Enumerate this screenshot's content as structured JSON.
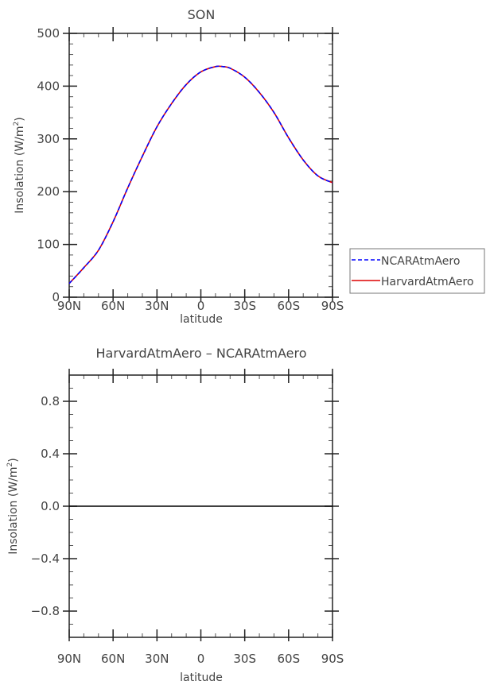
{
  "chart_data": [
    {
      "type": "line",
      "title": "SON",
      "xlabel": "latitude",
      "ylabel": "Insolation (W/m²)",
      "ylabel_main": "Insolation  (W/m",
      "ylabel_sup": "2",
      "ylabel_end": ")",
      "xlim": [
        90,
        -90
      ],
      "ylim": [
        0,
        500
      ],
      "xticks": [
        90,
        60,
        30,
        0,
        -30,
        -60,
        -90
      ],
      "xtick_labels": [
        "90N",
        "60N",
        "30N",
        "0",
        "30S",
        "60S",
        "90S"
      ],
      "yticks": [
        0,
        100,
        200,
        300,
        400,
        500
      ],
      "ytick_labels": [
        "0",
        "100",
        "200",
        "300",
        "400",
        "500"
      ],
      "grid": false,
      "legend": "right",
      "x": [
        90,
        80,
        70,
        60,
        50,
        40,
        30,
        20,
        10,
        0,
        -10,
        -15,
        -20,
        -30,
        -40,
        -50,
        -60,
        -70,
        -80,
        -90
      ],
      "series": [
        {
          "name": "NCARAtmAero",
          "color": "#0000ff",
          "dash": "dashed",
          "values": [
            26,
            56,
            89,
            143,
            207,
            267,
            323,
            367,
            403,
            427,
            437,
            437,
            434,
            417,
            388,
            350,
            302,
            260,
            230,
            217
          ]
        },
        {
          "name": "HarvardAtmAero",
          "color": "#dd0000",
          "dash": "solid",
          "values": [
            26,
            56,
            89,
            143,
            207,
            267,
            323,
            367,
            403,
            427,
            437,
            437,
            434,
            417,
            388,
            350,
            302,
            260,
            230,
            217
          ]
        }
      ]
    },
    {
      "type": "line",
      "title": "HarvardAtmAero – NCARAtmAero",
      "xlabel": "latitude",
      "ylabel_main": "Insolation  (W/m",
      "ylabel_sup": "2",
      "ylabel_end": ")",
      "xlim": [
        90,
        -90
      ],
      "ylim": [
        -1,
        1
      ],
      "xticks": [
        90,
        60,
        30,
        0,
        -30,
        -60,
        -90
      ],
      "xtick_labels": [
        "90N",
        "60N",
        "30N",
        "0",
        "30S",
        "60S",
        "90S"
      ],
      "yticks": [
        0.8,
        0.4,
        0.0,
        -0.4,
        -0.8
      ],
      "ytick_labels": [
        "0.8",
        "0.4",
        "0.0",
        "−0.4",
        "−0.8"
      ],
      "grid": false,
      "x": [
        90,
        -90
      ],
      "series": [
        {
          "color": "#000000",
          "values": [
            0,
            0
          ]
        }
      ]
    }
  ]
}
